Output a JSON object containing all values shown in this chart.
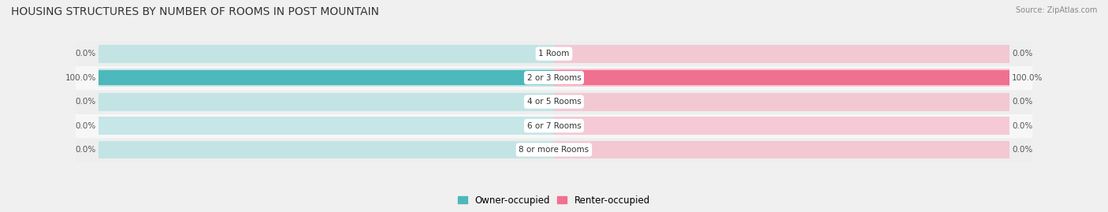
{
  "title": "HOUSING STRUCTURES BY NUMBER OF ROOMS IN POST MOUNTAIN",
  "source": "Source: ZipAtlas.com",
  "categories": [
    "8 or more Rooms",
    "6 or 7 Rooms",
    "4 or 5 Rooms",
    "2 or 3 Rooms",
    "1 Room"
  ],
  "categories_display": [
    "1 Room",
    "2 or 3 Rooms",
    "4 or 5 Rooms",
    "6 or 7 Rooms",
    "8 or more Rooms"
  ],
  "owner_values": [
    0.0,
    0.0,
    0.0,
    100.0,
    0.0
  ],
  "renter_values": [
    0.0,
    0.0,
    0.0,
    100.0,
    0.0
  ],
  "owner_color": "#4db8bb",
  "renter_color": "#f07090",
  "owner_color_light": "#b2e0e2",
  "renter_color_light": "#f5b8c8",
  "row_bg_even": "#eeeeee",
  "row_bg_odd": "#f7f7f7",
  "fig_bg": "#f0f0f0",
  "label_bg_color": "#ffffff",
  "legend_owner": "Owner-occupied",
  "legend_renter": "Renter-occupied",
  "max_value": 100.0,
  "title_fontsize": 10,
  "bar_height": 0.62,
  "bg_bar_height": 0.75,
  "figsize": [
    14.06,
    2.69
  ],
  "dpi": 100
}
